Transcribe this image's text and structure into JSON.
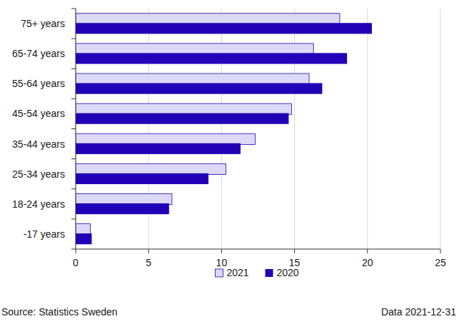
{
  "chart_data": {
    "type": "bar",
    "orientation": "horizontal",
    "categories": [
      "75+ years",
      "65-74 years",
      "55-64 years",
      "45-54 years",
      "35-44 years",
      "25-34 years",
      "18-24 years",
      "-17 years"
    ],
    "series": [
      {
        "name": "2021",
        "color": "#dcd9f7",
        "values": [
          18.1,
          16.3,
          16.0,
          14.8,
          12.3,
          10.3,
          6.6,
          1.0
        ]
      },
      {
        "name": "2020",
        "color": "#2200b8",
        "values": [
          20.3,
          18.6,
          16.9,
          14.6,
          11.3,
          9.1,
          6.4,
          1.1
        ]
      }
    ],
    "xlim": [
      0,
      25
    ],
    "xticks": [
      0,
      5,
      10,
      15,
      20,
      25
    ],
    "grid": true,
    "legend": "bottom",
    "annotations": [
      "Source: Statistics Sweden",
      "Data 2021-12-31"
    ]
  }
}
